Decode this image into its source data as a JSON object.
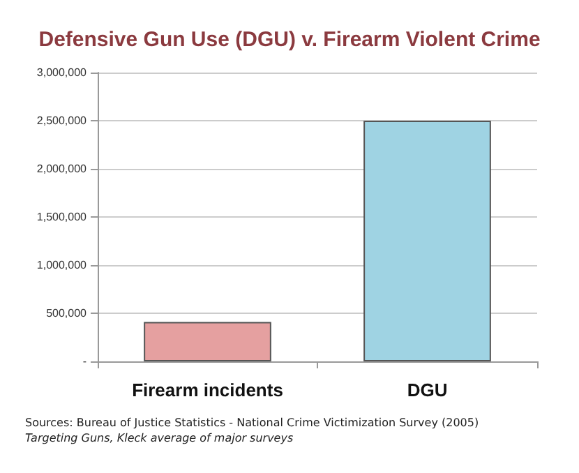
{
  "chart_data": {
    "type": "bar",
    "title": "Defensive Gun Use (DGU) v. Firearm Violent Crime",
    "categories": [
      "Firearm incidents",
      "DGU"
    ],
    "values": [
      410000,
      2500000
    ],
    "colors": [
      "#e5a0a0",
      "#9fd3e3"
    ],
    "ylim": [
      0,
      3000000
    ],
    "yticks": [
      {
        "value": 0,
        "label": "-"
      },
      {
        "value": 500000,
        "label": "500,000"
      },
      {
        "value": 1000000,
        "label": "1,000,000"
      },
      {
        "value": 1500000,
        "label": "1,500,000"
      },
      {
        "value": 2000000,
        "label": "2,000,000"
      },
      {
        "value": 2500000,
        "label": "2,500,000"
      },
      {
        "value": 3000000,
        "label": "3,000,000"
      }
    ],
    "grid": "y",
    "annotations": [
      "Sources: Bureau of Justice Statistics - National Crime Victimization Survey (2005)",
      "Targeting Guns, Kleck average of major surveys"
    ]
  }
}
